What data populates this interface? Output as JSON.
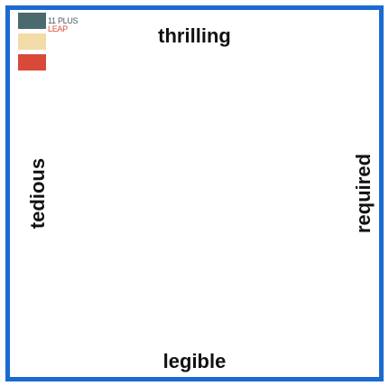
{
  "logo": {
    "lines": [
      "11 PLUS",
      "LEAP"
    ]
  },
  "labels": {
    "top": "thrilling",
    "bottom": "legible",
    "left": "tedious",
    "right": "required"
  }
}
